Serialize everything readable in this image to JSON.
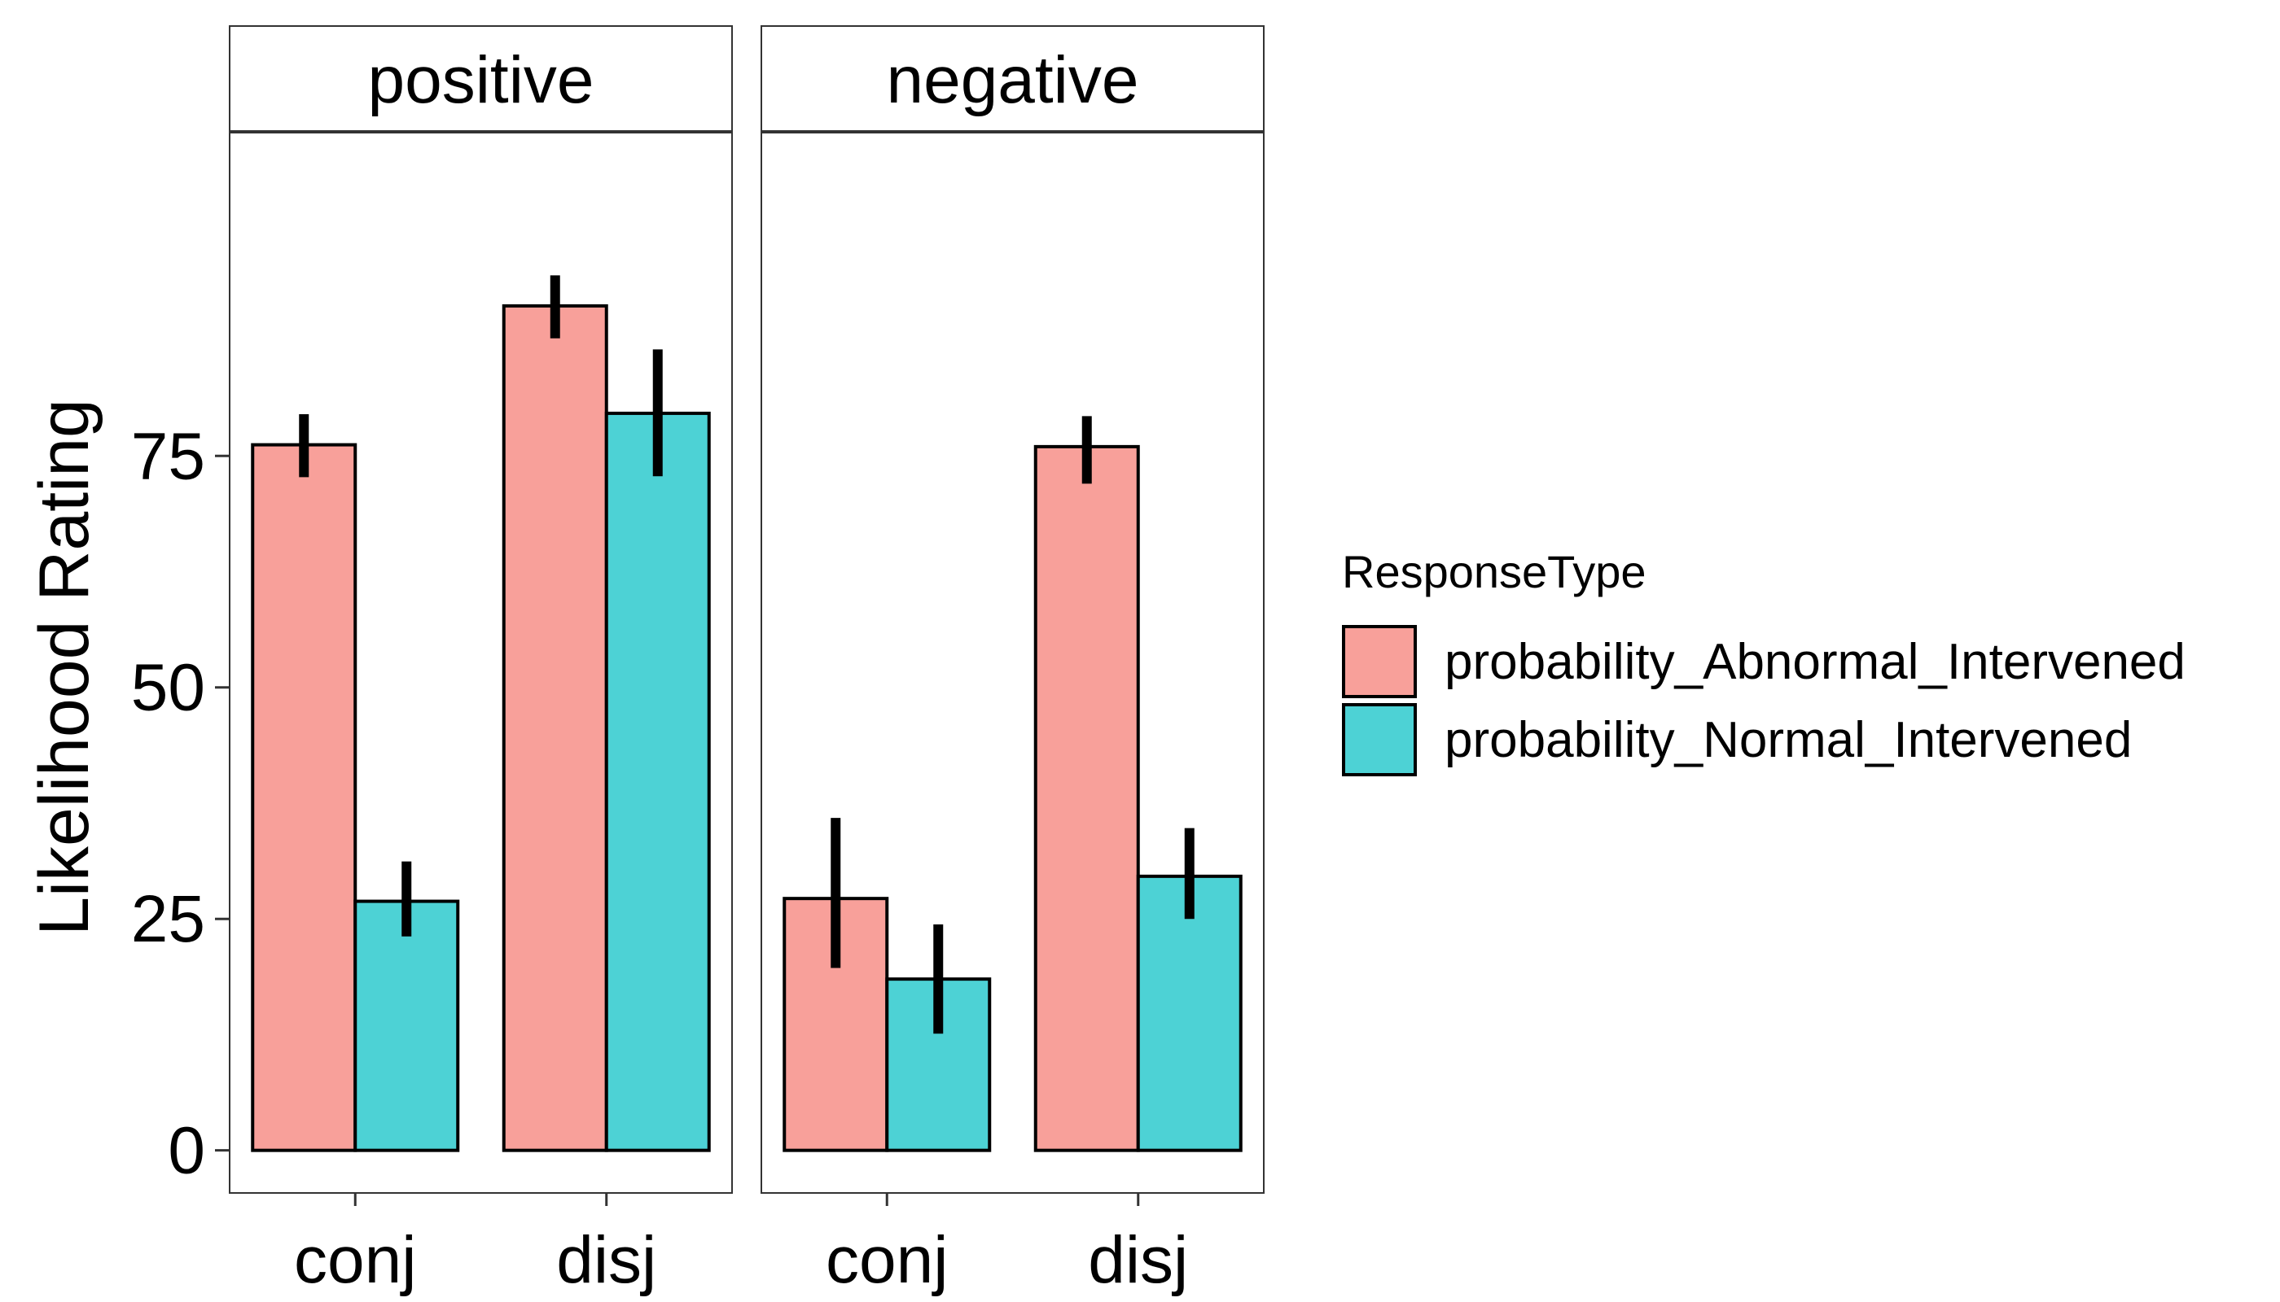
{
  "chart_data": {
    "type": "bar",
    "ylabel": "Likelihood Rating",
    "xlabel": "",
    "ylim": [
      -4.6,
      110
    ],
    "yticks": [
      0,
      25,
      50,
      75
    ],
    "grid": false,
    "legend_position": "right",
    "legend": {
      "title": "ResponseType",
      "entries": [
        {
          "name": "probability_Abnormal_Intervened",
          "color": "#F8A09A"
        },
        {
          "name": "probability_Normal_Intervened",
          "color": "#4DD2D5"
        }
      ]
    },
    "categories": [
      "conj",
      "disj"
    ],
    "panels": [
      {
        "label": "positive",
        "series": [
          {
            "name": "probability_Abnormal_Intervened",
            "values": [
              76.2,
              91.2
            ],
            "err_low": [
              72.7,
              87.7
            ],
            "err_high": [
              79.5,
              94.5
            ]
          },
          {
            "name": "probability_Normal_Intervened",
            "values": [
              26.9,
              79.6
            ],
            "err_low": [
              23.1,
              72.8
            ],
            "err_high": [
              31.2,
              86.5
            ]
          }
        ]
      },
      {
        "label": "negative",
        "series": [
          {
            "name": "probability_Abnormal_Intervened",
            "values": [
              27.2,
              76.0
            ],
            "err_low": [
              19.7,
              72.0
            ],
            "err_high": [
              35.9,
              79.3
            ]
          },
          {
            "name": "probability_Normal_Intervened",
            "values": [
              18.5,
              29.6
            ],
            "err_low": [
              12.6,
              25.0
            ],
            "err_high": [
              24.4,
              34.8
            ]
          }
        ]
      }
    ]
  }
}
